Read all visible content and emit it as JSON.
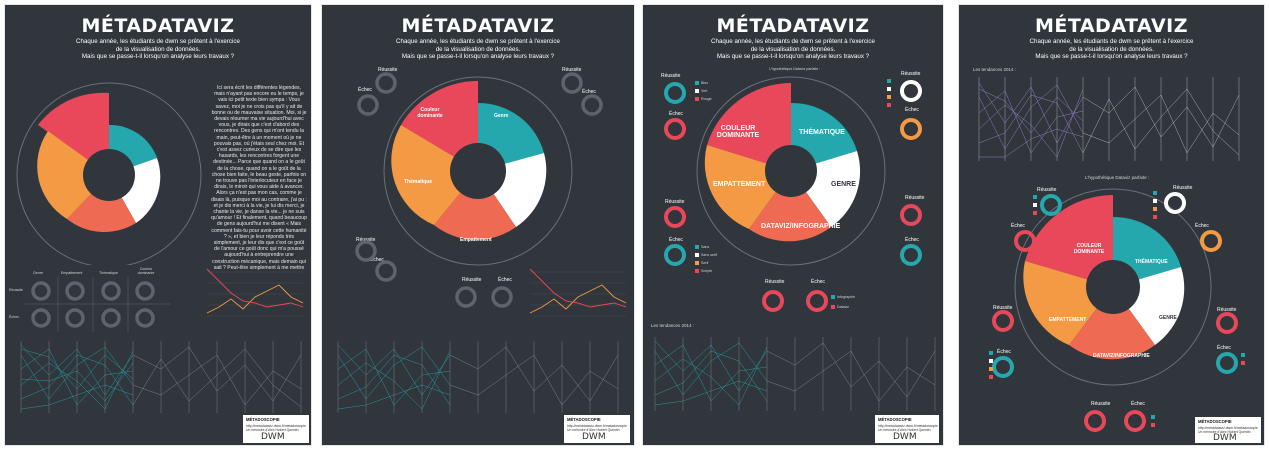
{
  "title": "MÉTADATAVIZ",
  "subtitle": {
    "line1": "Chaque année, les étudiants de dwm se prêtent à l'exercice",
    "line2": "de la visualisation de données.",
    "line3": "Mais que se passe-t-il lorsqu'on analyse leurs travaux ?"
  },
  "poster1": {
    "story": "Ici sera écrit les différentes légendes, mais n'ayant pas encore eu le temps, je vais ici petit texte bien sympa : Vous savez, moi je ne crois pas qu'il y ait de bonne ou de mauvaise situation. Moi, si je devais résumer ma vie aujourd'hui avec vous, je dirais que c'est d'abord des rencontres. Des gens qui m'ont tendu la main, peut-être à un moment où je ne pouvais pas, où j'étais seul chez moi. Et c'est assez curieux de se dire que les hasards, les rencontres forgent une destinée... Parce que quand on a le goût de la chose, quand on a le goût de la chose bien faite, le beau geste, parfois on ne trouve pas l'interlocuteur en face je dirais, le miroir qui vous aide à avancer. Alors ça n'est pas mon cas, comme je disais là, puisque moi au contraire, j'ai pu : et je dis merci à la vie, je lui dis merci, je chante la vie, je danse la vie... je ne suis qu'amour ! Et finalement, quand beaucoup de gens aujourd'hui me disent « Mais comment fais-tu pour avoir cette humanité ? », et bien je leur réponds très simplement, je leur dis que c'est ce goût de l'amour ce goût donc qui m'a poussé aujourd'hui à entreprendre une construction mécanique, mais demain qui sait ? Peut-être simplement à me mettre au service de la communauté, à faire le don, le don de soi...",
    "grid_cols": [
      "Genre",
      "Empattement",
      "Thématique",
      "Couleur dominante"
    ],
    "grid_rows": [
      "Réussite",
      "Échec"
    ]
  },
  "poster2": {
    "segments": [
      "Couleur dominante",
      "Genre",
      "Thématique",
      "Empattement"
    ],
    "reussite": "Réussite",
    "echec": "Échec"
  },
  "poster3": {
    "hypo": "L'hypothétique Dataviz parfaite :",
    "segments": [
      "COULEUR DOMINANTE",
      "THÉMATIQUE",
      "GENRE",
      "EMPATTEMENT",
      "DATAVIZ/INFOGRAPHIE"
    ],
    "reussite": "Réussite",
    "echec": "Échec",
    "legend_color": [
      "Bleu",
      "Vert",
      "Rouge"
    ],
    "legend_font": [
      "Sans",
      "Sans serif",
      "Serif",
      "Scripte"
    ],
    "legend_type": [
      "Infographie",
      "Dataviz"
    ],
    "tendances": "Les tendances 2014 :"
  },
  "poster4": {
    "tendances": "Les tendances 2014 :",
    "hypo": "L'hypothétique Dataviz parfaite :",
    "segments": [
      "COULEUR DOMINANTE",
      "THÉMATIQUE",
      "GENRE",
      "EMPATTEMENT",
      "DATAVIZ/INFOGRAPHIE"
    ],
    "reussite": "Réussite",
    "echec": "Échec"
  },
  "footer": {
    "heading": "MÉTADOSCOPIE",
    "line1": "http://metadataviz.dwm.fr/metadoscopie",
    "line2": "Un mémoire d'Alex Hubert Quentin",
    "logo": "DWM"
  },
  "colors": {
    "background": "#31363d",
    "teal": "#24a8ad",
    "red": "#e8485a",
    "orange": "#f49a45",
    "coral": "#ee6a53",
    "white": "#ffffff",
    "ring": "#5d646b"
  }
}
